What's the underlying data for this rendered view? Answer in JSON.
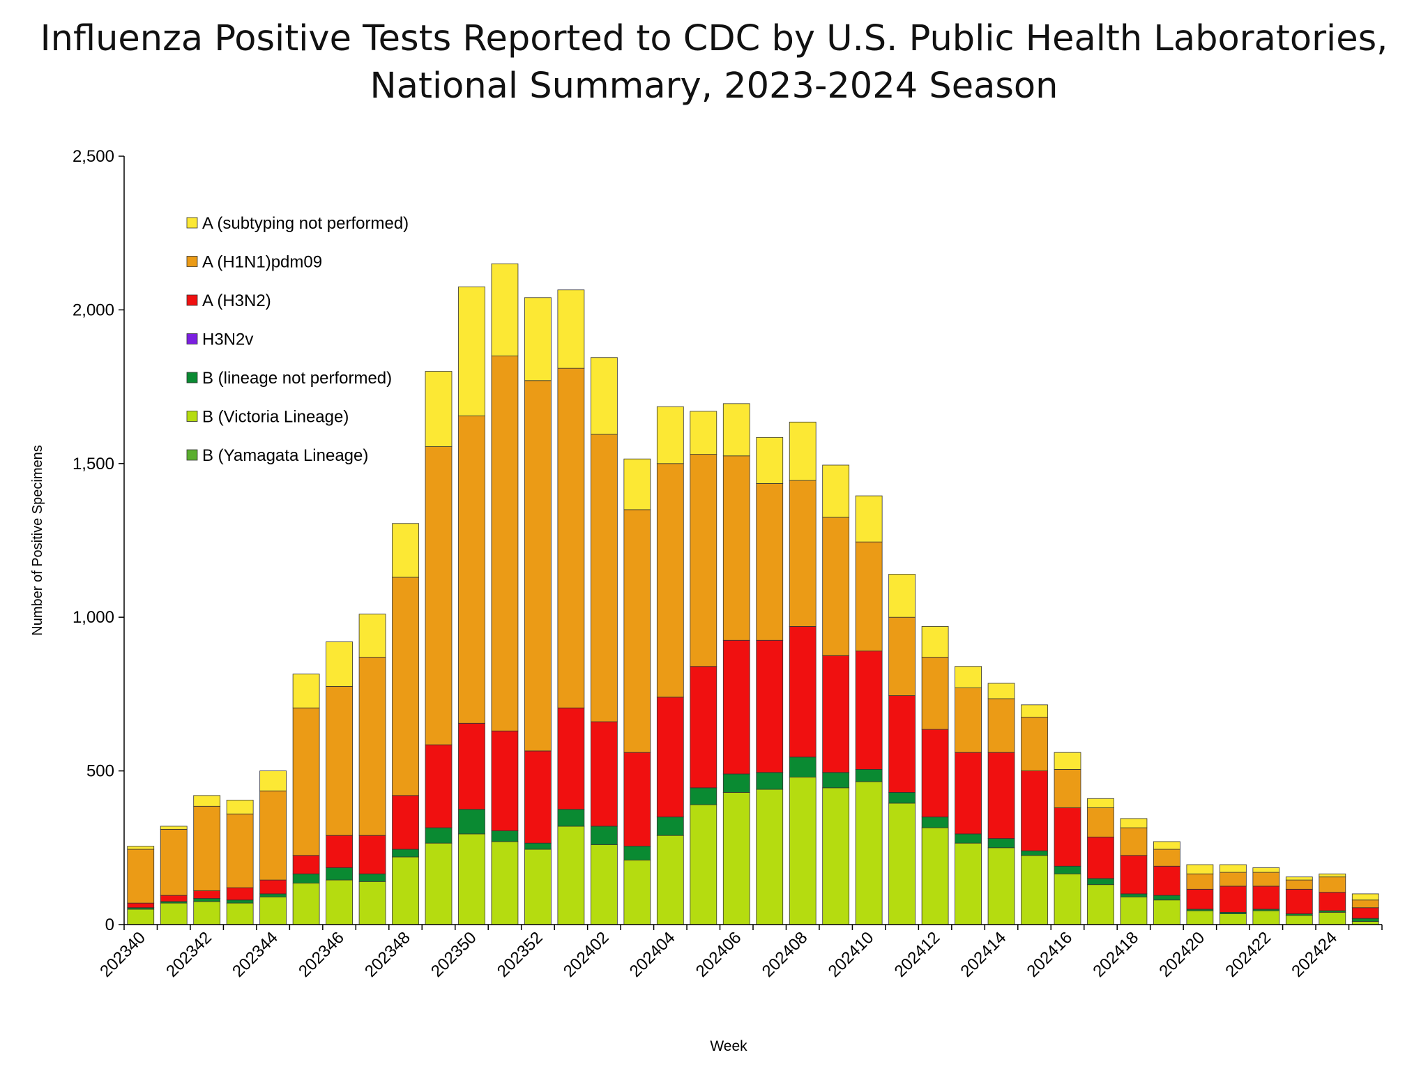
{
  "chart_data": {
    "type": "bar",
    "stacked": true,
    "title_line1": "Influenza Positive Tests Reported to CDC by U.S. Public Health Laboratories,",
    "title_line2": "National Summary, 2023-2024 Season",
    "xlabel": "Week",
    "ylabel": "Number of Positive Specimens",
    "ylim": [
      0,
      2500
    ],
    "yticks": [
      0,
      500,
      1000,
      1500,
      2000,
      2500
    ],
    "ytick_labels": [
      "0",
      "500",
      "1,000",
      "1,500",
      "2,000",
      "2,500"
    ],
    "grid": false,
    "legend_position": "top-left",
    "categories": [
      "202340",
      "202341",
      "202342",
      "202343",
      "202344",
      "202345",
      "202346",
      "202347",
      "202348",
      "202349",
      "202350",
      "202351",
      "202352",
      "202401",
      "202402",
      "202403",
      "202404",
      "202405",
      "202406",
      "202407",
      "202408",
      "202409",
      "202410",
      "202411",
      "202412",
      "202413",
      "202414",
      "202415",
      "202416",
      "202417",
      "202418",
      "202419",
      "202420",
      "202421",
      "202422",
      "202423",
      "202424",
      "202425"
    ],
    "xtick_labels_shown": [
      "202340",
      "202342",
      "202344",
      "202346",
      "202348",
      "202350",
      "202352",
      "202402",
      "202404",
      "202406",
      "202408",
      "202410",
      "202412",
      "202414",
      "202416",
      "202418",
      "202420",
      "202422",
      "202424"
    ],
    "series": [
      {
        "name": "B (Victoria Lineage)",
        "color": "#b5dc10",
        "values": [
          50,
          70,
          75,
          70,
          90,
          135,
          145,
          140,
          220,
          265,
          295,
          270,
          245,
          320,
          260,
          210,
          290,
          390,
          430,
          440,
          480,
          445,
          465,
          395,
          315,
          265,
          250,
          225,
          165,
          130,
          90,
          80,
          45,
          35,
          45,
          30,
          40,
          10
        ]
      },
      {
        "name": "B (Yamagata Lineage)",
        "color": "#5aae2e",
        "values": [
          0,
          0,
          0,
          0,
          0,
          0,
          0,
          0,
          0,
          0,
          0,
          0,
          0,
          0,
          0,
          0,
          0,
          0,
          0,
          0,
          0,
          0,
          0,
          0,
          0,
          0,
          0,
          0,
          0,
          0,
          0,
          0,
          0,
          0,
          0,
          0,
          0,
          0
        ]
      },
      {
        "name": "B (lineage not performed)",
        "color": "#0a8a32",
        "values": [
          5,
          5,
          10,
          10,
          10,
          30,
          40,
          25,
          25,
          50,
          80,
          35,
          20,
          55,
          60,
          45,
          60,
          55,
          60,
          55,
          65,
          50,
          40,
          35,
          35,
          30,
          30,
          15,
          25,
          20,
          10,
          15,
          5,
          5,
          5,
          5,
          5,
          10
        ]
      },
      {
        "name": "H3N2v",
        "color": "#7b1fe0",
        "values": [
          0,
          0,
          0,
          0,
          0,
          0,
          0,
          0,
          0,
          0,
          0,
          0,
          0,
          0,
          0,
          0,
          0,
          0,
          0,
          0,
          0,
          0,
          0,
          0,
          0,
          0,
          0,
          0,
          0,
          0,
          0,
          0,
          0,
          0,
          0,
          0,
          0,
          0
        ]
      },
      {
        "name": "A (H3N2)",
        "color": "#f01010",
        "values": [
          15,
          20,
          25,
          40,
          45,
          60,
          105,
          125,
          175,
          270,
          280,
          325,
          300,
          330,
          340,
          305,
          390,
          395,
          435,
          430,
          425,
          380,
          385,
          315,
          285,
          265,
          280,
          260,
          190,
          135,
          125,
          95,
          65,
          85,
          75,
          80,
          60,
          35
        ]
      },
      {
        "name": "A (H1N1)pdm09",
        "color": "#eb9b16",
        "values": [
          175,
          215,
          275,
          240,
          290,
          480,
          485,
          580,
          710,
          970,
          1000,
          1220,
          1205,
          1105,
          935,
          790,
          760,
          690,
          600,
          510,
          475,
          450,
          355,
          255,
          235,
          210,
          175,
          175,
          125,
          95,
          90,
          55,
          50,
          45,
          45,
          30,
          50,
          25
        ]
      },
      {
        "name": "A (subtyping not performed)",
        "color": "#fce834",
        "values": [
          10,
          10,
          35,
          45,
          65,
          110,
          145,
          140,
          175,
          245,
          420,
          300,
          270,
          255,
          250,
          165,
          185,
          140,
          170,
          150,
          190,
          170,
          150,
          140,
          100,
          70,
          50,
          40,
          55,
          30,
          30,
          25,
          30,
          25,
          15,
          10,
          10,
          20
        ]
      }
    ],
    "legend_order": [
      "A (subtyping not performed)",
      "A (H1N1)pdm09",
      "A (H3N2)",
      "H3N2v",
      "B (lineage not performed)",
      "B (Victoria Lineage)",
      "B (Yamagata Lineage)"
    ]
  }
}
